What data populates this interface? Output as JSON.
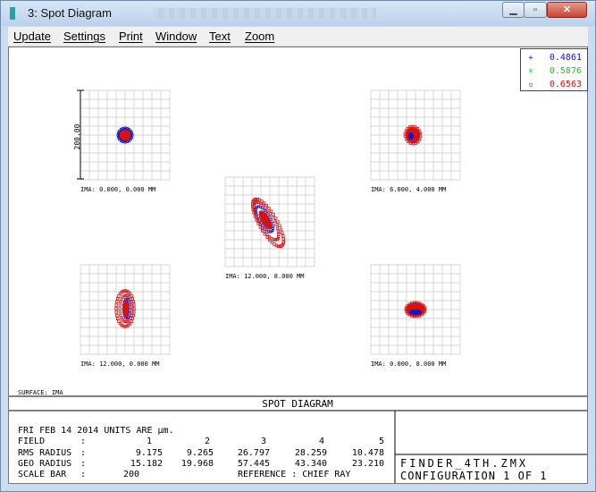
{
  "window": {
    "title": "3: Spot Diagram"
  },
  "menu": [
    {
      "label": "Update"
    },
    {
      "label": "Settings"
    },
    {
      "label": "Print"
    },
    {
      "label": "Window"
    },
    {
      "label": "Text"
    },
    {
      "label": "Zoom"
    }
  ],
  "legend": [
    {
      "marker": "+",
      "wavelength": "0.4861",
      "color": "#1414c8"
    },
    {
      "marker": "×",
      "wavelength": "0.5876",
      "color": "#22c522"
    },
    {
      "marker": "▫",
      "wavelength": "0.6563",
      "color": "#d21414"
    }
  ],
  "plots": {
    "scale_label": "200.00",
    "fields": [
      {
        "label": "IMA: 0.000, 0.000 MM"
      },
      {
        "label": "IMA: 6.000, 4.000 MM"
      },
      {
        "label": "IMA: 12.000, 8.000 MM"
      },
      {
        "label": "IMA: 12.000, 0.000 MM"
      },
      {
        "label": "IMA: 0.000, 8.000 MM"
      }
    ],
    "surface": "SURFACE: IMA"
  },
  "info": {
    "heading": "SPOT DIAGRAM",
    "date_units": "FRI FEB 14 2014  UNITS ARE µm.",
    "field_label": "FIELD",
    "field_sep": ":",
    "field_numbers": [
      "1",
      "2",
      "3",
      "4",
      "5"
    ],
    "rms_label": "RMS RADIUS",
    "rms_sep": ":",
    "rms_values": [
      "9.175",
      "9.265",
      "26.797",
      "28.259",
      "10.478"
    ],
    "geo_label": "GEO RADIUS",
    "geo_sep": ":",
    "geo_values": [
      "15.182",
      "19.968",
      "57.445",
      "43.340",
      "23.210"
    ],
    "scale_bar_label": "SCALE BAR",
    "scale_bar_sep": ":",
    "scale_bar_value": "200",
    "reference": "REFERENCE  : CHIEF RAY",
    "filename": "FINDER_4TH.ZMX",
    "configuration": "CONFIGURATION 1 OF 1"
  }
}
